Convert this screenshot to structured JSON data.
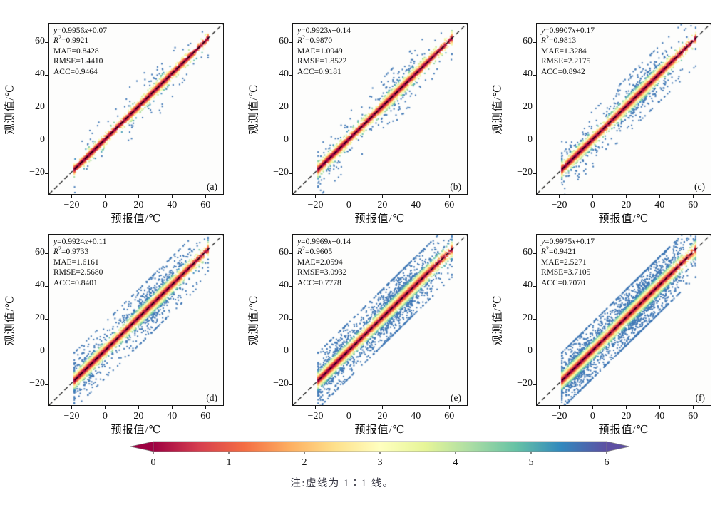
{
  "figure": {
    "note": "注:虚线为 1∶1 线。"
  },
  "axes": {
    "x_label": "预报值/℃",
    "y_label": "观测值/℃",
    "ticks": [
      -20,
      0,
      20,
      40,
      60
    ],
    "lim": [
      -33,
      71
    ]
  },
  "colorbar": {
    "min": 0,
    "max": 6,
    "ticks": [
      0,
      1,
      2,
      3,
      4,
      5,
      6
    ],
    "colors": [
      "#9e0142",
      "#d53e4f",
      "#f46d43",
      "#fdae61",
      "#fee08b",
      "#ffffbf",
      "#e6f598",
      "#abdda4",
      "#66c2a5",
      "#3288bd",
      "#5e4fa2"
    ]
  },
  "panels": [
    {
      "letter": "(a)",
      "stats_lines": [
        "y=0.9956x+0.07",
        "R²=0.9921",
        "MAE=0.8428",
        "RMSE=1.4410",
        "ACC=0.9464"
      ],
      "render": {
        "seed": 11,
        "n": 3600,
        "mae": 0.8428,
        "tail": 0.1
      }
    },
    {
      "letter": "(b)",
      "stats_lines": [
        "y=0.9923x+0.14",
        "R²=0.9870",
        "MAE=1.0949",
        "RMSE=1.8522",
        "ACC=0.9181"
      ],
      "render": {
        "seed": 22,
        "n": 4100,
        "mae": 1.0949,
        "tail": 0.13
      }
    },
    {
      "letter": "(c)",
      "stats_lines": [
        "y=0.9907x+0.17",
        "R²=0.9813",
        "MAE=1.3284",
        "RMSE=2.2175",
        "ACC=0.8942"
      ],
      "render": {
        "seed": 33,
        "n": 4700,
        "mae": 1.3284,
        "tail": 0.16
      }
    },
    {
      "letter": "(d)",
      "stats_lines": [
        "y=0.9924x+0.11",
        "R²=0.9733",
        "MAE=1.6161",
        "RMSE=2.5680",
        "ACC=0.8401"
      ],
      "render": {
        "seed": 44,
        "n": 5300,
        "mae": 1.6161,
        "tail": 0.2
      }
    },
    {
      "letter": "(e)",
      "stats_lines": [
        "y=0.9969x+0.14",
        "R²=0.9605",
        "MAE=2.0594",
        "RMSE=3.0932",
        "ACC=0.7778"
      ],
      "render": {
        "seed": 55,
        "n": 6100,
        "mae": 2.0594,
        "tail": 0.25
      }
    },
    {
      "letter": "(f)",
      "stats_lines": [
        "y=0.9975x+0.17",
        "R²=0.9421",
        "MAE=2.5271",
        "RMSE=3.7105",
        "ACC=0.7070"
      ],
      "render": {
        "seed": 66,
        "n": 6900,
        "mae": 2.5271,
        "tail": 0.3
      }
    }
  ],
  "chart_data": [
    {
      "panel": "(a)",
      "type": "scatter",
      "xlabel": "预报值/℃",
      "ylabel": "观测值/℃",
      "xlim": [
        -33,
        71
      ],
      "ylim": [
        -33,
        71
      ],
      "x_ticks": [
        -20,
        0,
        20,
        40,
        60
      ],
      "y_ticks": [
        -20,
        0,
        20,
        40,
        60
      ],
      "fit_line": {
        "slope": 0.9956,
        "intercept": 0.07
      },
      "r_squared": 0.9921,
      "mae": 0.8428,
      "rmse": 1.441,
      "acc": 0.9464,
      "points_span_diagonal": [
        -18,
        62
      ],
      "reference_line": "1:1 dashed",
      "color_encoding": {
        "range": [
          0,
          6
        ],
        "colormap": "spectral",
        "shared_colorbar": true
      }
    },
    {
      "panel": "(b)",
      "type": "scatter",
      "xlabel": "预报值/℃",
      "ylabel": "观测值/℃",
      "xlim": [
        -33,
        71
      ],
      "ylim": [
        -33,
        71
      ],
      "x_ticks": [
        -20,
        0,
        20,
        40,
        60
      ],
      "y_ticks": [
        -20,
        0,
        20,
        40,
        60
      ],
      "fit_line": {
        "slope": 0.9923,
        "intercept": 0.14
      },
      "r_squared": 0.987,
      "mae": 1.0949,
      "rmse": 1.8522,
      "acc": 0.9181,
      "points_span_diagonal": [
        -18,
        62
      ],
      "reference_line": "1:1 dashed",
      "color_encoding": {
        "range": [
          0,
          6
        ],
        "colormap": "spectral",
        "shared_colorbar": true
      }
    },
    {
      "panel": "(c)",
      "type": "scatter",
      "xlabel": "预报值/℃",
      "ylabel": "观测值/℃",
      "xlim": [
        -33,
        71
      ],
      "ylim": [
        -33,
        71
      ],
      "x_ticks": [
        -20,
        0,
        20,
        40,
        60
      ],
      "y_ticks": [
        -20,
        0,
        20,
        40,
        60
      ],
      "fit_line": {
        "slope": 0.9907,
        "intercept": 0.17
      },
      "r_squared": 0.9813,
      "mae": 1.3284,
      "rmse": 2.2175,
      "acc": 0.8942,
      "points_span_diagonal": [
        -18,
        62
      ],
      "reference_line": "1:1 dashed",
      "color_encoding": {
        "range": [
          0,
          6
        ],
        "colormap": "spectral",
        "shared_colorbar": true
      }
    },
    {
      "panel": "(d)",
      "type": "scatter",
      "xlabel": "预报值/℃",
      "ylabel": "观测值/℃",
      "xlim": [
        -33,
        71
      ],
      "ylim": [
        -33,
        71
      ],
      "x_ticks": [
        -20,
        0,
        20,
        40,
        60
      ],
      "y_ticks": [
        -20,
        0,
        20,
        40,
        60
      ],
      "fit_line": {
        "slope": 0.9924,
        "intercept": 0.11
      },
      "r_squared": 0.9733,
      "mae": 1.6161,
      "rmse": 2.568,
      "acc": 0.8401,
      "points_span_diagonal": [
        -18,
        62
      ],
      "reference_line": "1:1 dashed",
      "color_encoding": {
        "range": [
          0,
          6
        ],
        "colormap": "spectral",
        "shared_colorbar": true
      }
    },
    {
      "panel": "(e)",
      "type": "scatter",
      "xlabel": "预报值/℃",
      "ylabel": "观测值/℃",
      "xlim": [
        -33,
        71
      ],
      "ylim": [
        -33,
        71
      ],
      "x_ticks": [
        -20,
        0,
        20,
        40,
        60
      ],
      "y_ticks": [
        -20,
        0,
        20,
        40,
        60
      ],
      "fit_line": {
        "slope": 0.9969,
        "intercept": 0.14
      },
      "r_squared": 0.9605,
      "mae": 2.0594,
      "rmse": 3.0932,
      "acc": 0.7778,
      "points_span_diagonal": [
        -18,
        62
      ],
      "reference_line": "1:1 dashed",
      "color_encoding": {
        "range": [
          0,
          6
        ],
        "colormap": "spectral",
        "shared_colorbar": true
      }
    },
    {
      "panel": "(f)",
      "type": "scatter",
      "xlabel": "预报值/℃",
      "ylabel": "观测值/℃",
      "xlim": [
        -33,
        71
      ],
      "ylim": [
        -33,
        71
      ],
      "x_ticks": [
        -20,
        0,
        20,
        40,
        60
      ],
      "y_ticks": [
        -20,
        0,
        20,
        40,
        60
      ],
      "fit_line": {
        "slope": 0.9975,
        "intercept": 0.17
      },
      "r_squared": 0.9421,
      "mae": 2.5271,
      "rmse": 3.7105,
      "acc": 0.707,
      "points_span_diagonal": [
        -18,
        62
      ],
      "reference_line": "1:1 dashed",
      "color_encoding": {
        "range": [
          0,
          6
        ],
        "colormap": "spectral",
        "shared_colorbar": true
      }
    }
  ]
}
